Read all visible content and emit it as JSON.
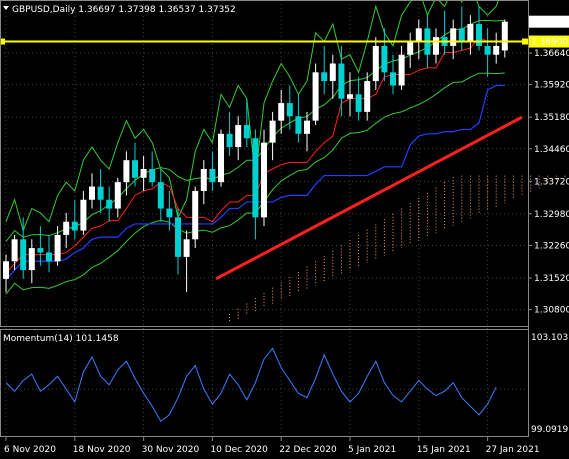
{
  "header": {
    "symbol_line": "GBPUSD,Daily  1.36697 1.37398 1.36537 1.37352",
    "collapse_icon": "triangle-down-icon"
  },
  "momentum_panel": {
    "label": "Momentum(14) 101.1458",
    "scale_top": "103.1037",
    "scale_bottom": "99.0919"
  },
  "price_scale": {
    "ticks": [
      "1.36640",
      "1.35920",
      "1.35180",
      "1.34460",
      "1.33720",
      "1.32980",
      "1.32260",
      "1.31520",
      "1.30800"
    ],
    "current_price": "1.37352",
    "hline_price": "1.36900"
  },
  "colors": {
    "background": "#000000",
    "bull_candle": "#ffffff",
    "bear_candle": "#00d0d0",
    "tenkan": "#ff2020",
    "kijun": "#2040ff",
    "chikou": "#33cc33",
    "bands": "#33cc33",
    "cloud": "#ff9966",
    "trendline": "#ff2020",
    "hline": "#ffff00",
    "momentum": "#3c7dff",
    "grid": "#404040"
  },
  "chart_data": {
    "type": "candlestick",
    "symbol": "GBPUSD",
    "timeframe": "Daily",
    "ohlc_last": {
      "open": 1.36697,
      "high": 1.37398,
      "low": 1.36537,
      "close": 1.37352
    },
    "x_tick_labels": [
      "6 Nov 2020",
      "18 Nov 2020",
      "30 Nov 2020",
      "10 Dec 2020",
      "22 Dec 2020",
      "5 Jan 2021",
      "15 Jan 2021",
      "27 Jan 2021"
    ],
    "x_tick_index": [
      0,
      8,
      16,
      24,
      32,
      40,
      48,
      56
    ],
    "y_range": [
      1.3045,
      1.378
    ],
    "y_ticks": [
      1.3664,
      1.3592,
      1.3518,
      1.3446,
      1.3372,
      1.3298,
      1.3226,
      1.3152,
      1.308
    ],
    "candles": [
      [
        1.315,
        1.3205,
        1.312,
        1.319
      ],
      [
        1.319,
        1.325,
        1.317,
        1.324
      ],
      [
        1.324,
        1.329,
        1.315,
        1.317
      ],
      [
        1.317,
        1.324,
        1.314,
        1.322
      ],
      [
        1.322,
        1.327,
        1.318,
        1.321
      ],
      [
        1.321,
        1.325,
        1.3165,
        1.319
      ],
      [
        1.319,
        1.327,
        1.318,
        1.325
      ],
      [
        1.325,
        1.33,
        1.322,
        1.328
      ],
      [
        1.328,
        1.333,
        1.324,
        1.326
      ],
      [
        1.326,
        1.335,
        1.325,
        1.333
      ],
      [
        1.333,
        1.339,
        1.331,
        1.336
      ],
      [
        1.336,
        1.34,
        1.33,
        1.333
      ],
      [
        1.333,
        1.336,
        1.328,
        1.331
      ],
      [
        1.331,
        1.338,
        1.329,
        1.337
      ],
      [
        1.337,
        1.344,
        1.334,
        1.342
      ],
      [
        1.342,
        1.346,
        1.336,
        1.338
      ],
      [
        1.338,
        1.343,
        1.335,
        1.34
      ],
      [
        1.34,
        1.344,
        1.336,
        1.337
      ],
      [
        1.337,
        1.34,
        1.328,
        1.331
      ],
      [
        1.331,
        1.335,
        1.326,
        1.329
      ],
      [
        1.329,
        1.331,
        1.316,
        1.32
      ],
      [
        1.32,
        1.326,
        1.312,
        1.324
      ],
      [
        1.324,
        1.336,
        1.322,
        1.335
      ],
      [
        1.335,
        1.342,
        1.332,
        1.34
      ],
      [
        1.34,
        1.344,
        1.335,
        1.337
      ],
      [
        1.337,
        1.349,
        1.336,
        1.348
      ],
      [
        1.348,
        1.353,
        1.343,
        1.345
      ],
      [
        1.345,
        1.352,
        1.342,
        1.35
      ],
      [
        1.35,
        1.356,
        1.345,
        1.347
      ],
      [
        1.347,
        1.349,
        1.324,
        1.329
      ],
      [
        1.329,
        1.349,
        1.327,
        1.346
      ],
      [
        1.346,
        1.353,
        1.342,
        1.351
      ],
      [
        1.351,
        1.358,
        1.348,
        1.355
      ],
      [
        1.355,
        1.359,
        1.349,
        1.352
      ],
      [
        1.352,
        1.357,
        1.346,
        1.348
      ],
      [
        1.348,
        1.353,
        1.344,
        1.351
      ],
      [
        1.351,
        1.364,
        1.35,
        1.362
      ],
      [
        1.362,
        1.368,
        1.357,
        1.36
      ],
      [
        1.36,
        1.366,
        1.356,
        1.364
      ],
      [
        1.364,
        1.368,
        1.352,
        1.356
      ],
      [
        1.356,
        1.362,
        1.352,
        1.357
      ],
      [
        1.357,
        1.361,
        1.351,
        1.353
      ],
      [
        1.353,
        1.362,
        1.351,
        1.36
      ],
      [
        1.36,
        1.37,
        1.358,
        1.368
      ],
      [
        1.368,
        1.372,
        1.36,
        1.362
      ],
      [
        1.362,
        1.366,
        1.357,
        1.359
      ],
      [
        1.359,
        1.368,
        1.358,
        1.366
      ],
      [
        1.366,
        1.371,
        1.363,
        1.369
      ],
      [
        1.369,
        1.374,
        1.365,
        1.372
      ],
      [
        1.372,
        1.375,
        1.363,
        1.366
      ],
      [
        1.366,
        1.372,
        1.364,
        1.37
      ],
      [
        1.37,
        1.376,
        1.366,
        1.368
      ],
      [
        1.368,
        1.374,
        1.365,
        1.372
      ],
      [
        1.372,
        1.377,
        1.367,
        1.369
      ],
      [
        1.369,
        1.375,
        1.366,
        1.373
      ],
      [
        1.373,
        1.377,
        1.367,
        1.368
      ],
      [
        1.368,
        1.372,
        1.361,
        1.366
      ],
      [
        1.366,
        1.371,
        1.364,
        1.368
      ],
      [
        1.36697,
        1.37398,
        1.36537,
        1.37352
      ]
    ],
    "momentum": {
      "label": "Momentum(14) 101.1458",
      "range": [
        99.0919,
        103.1037
      ],
      "values": [
        101.3,
        100.9,
        101.4,
        101.7,
        100.9,
        101.2,
        101.6,
        101.0,
        100.4,
        101.8,
        102.5,
        101.6,
        101.2,
        101.9,
        102.3,
        101.5,
        100.8,
        100.2,
        99.5,
        99.8,
        100.6,
        101.6,
        102.1,
        101.0,
        100.3,
        100.8,
        101.7,
        101.2,
        100.5,
        101.3,
        102.4,
        102.9,
        102.0,
        101.4,
        100.8,
        100.6,
        101.5,
        102.6,
        101.7,
        100.9,
        100.4,
        100.8,
        101.6,
        102.3,
        101.3,
        100.7,
        100.4,
        100.9,
        101.4,
        101.0,
        100.7,
        100.9,
        101.3,
        100.6,
        100.2,
        99.8,
        100.3,
        101.1
      ]
    },
    "hline": 1.369,
    "trendline": {
      "from_index": 25,
      "from_price": 1.315,
      "to_index": 73,
      "to_price": 1.3518
    }
  }
}
